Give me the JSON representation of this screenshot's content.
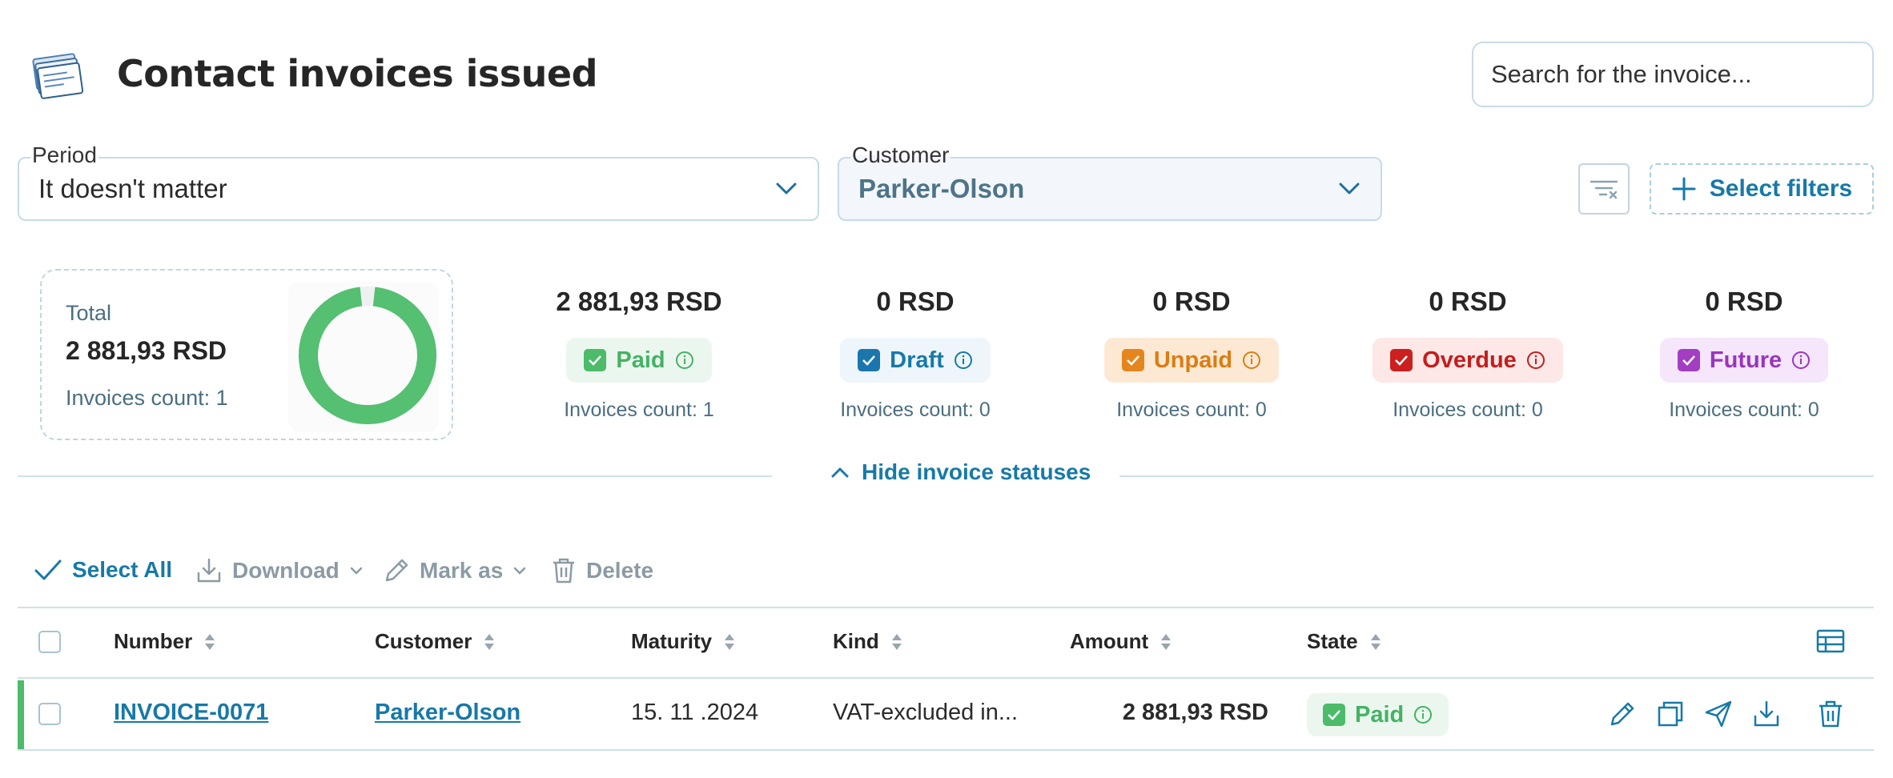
{
  "header": {
    "title": "Contact invoices issued",
    "search_placeholder": "Search for the invoice..."
  },
  "filters": {
    "period_label": "Period",
    "period_value": "It doesn't matter",
    "customer_label": "Customer",
    "customer_value": "Parker-Olson",
    "select_filters_label": "Select filters"
  },
  "summary": {
    "total_label": "Total",
    "total_amount": "2 881,93 RSD",
    "total_count": "Invoices count: 1",
    "paid_fraction": 1.0,
    "statuses": [
      {
        "name": "Paid",
        "amount": "2 881,93 RSD",
        "count": "Invoices count: 1",
        "color": "#4cbb6a",
        "bg": "#ebf7ee",
        "text": "#45b265"
      },
      {
        "name": "Draft",
        "amount": "0 RSD",
        "count": "Invoices count: 0",
        "color": "#1b76ad",
        "bg": "#eef6fb",
        "text": "#1779a8"
      },
      {
        "name": "Unpaid",
        "amount": "0 RSD",
        "count": "Invoices count: 0",
        "color": "#e4861d",
        "bg": "#fde9d3",
        "text": "#db7d14"
      },
      {
        "name": "Overdue",
        "amount": "0 RSD",
        "count": "Invoices count: 0",
        "color": "#cc1f1f",
        "bg": "#fde7e7",
        "text": "#c41d1d"
      },
      {
        "name": "Future",
        "amount": "0 RSD",
        "count": "Invoices count: 0",
        "color": "#a33ec3",
        "bg": "#f5e6fb",
        "text": "#9a35bd"
      }
    ],
    "hide_label": "Hide invoice statuses"
  },
  "toolbar": {
    "select_all": "Select All",
    "download": "Download",
    "mark_as": "Mark as",
    "delete": "Delete"
  },
  "table": {
    "columns": [
      "Number",
      "Customer",
      "Maturity",
      "Kind",
      "Amount",
      "State"
    ],
    "rows": [
      {
        "number": "INVOICE-0071",
        "customer": "Parker-Olson",
        "maturity": "15. 11 .2024",
        "kind": "VAT-excluded in...",
        "amount": "2 881,93 RSD",
        "state": "Paid"
      }
    ]
  }
}
